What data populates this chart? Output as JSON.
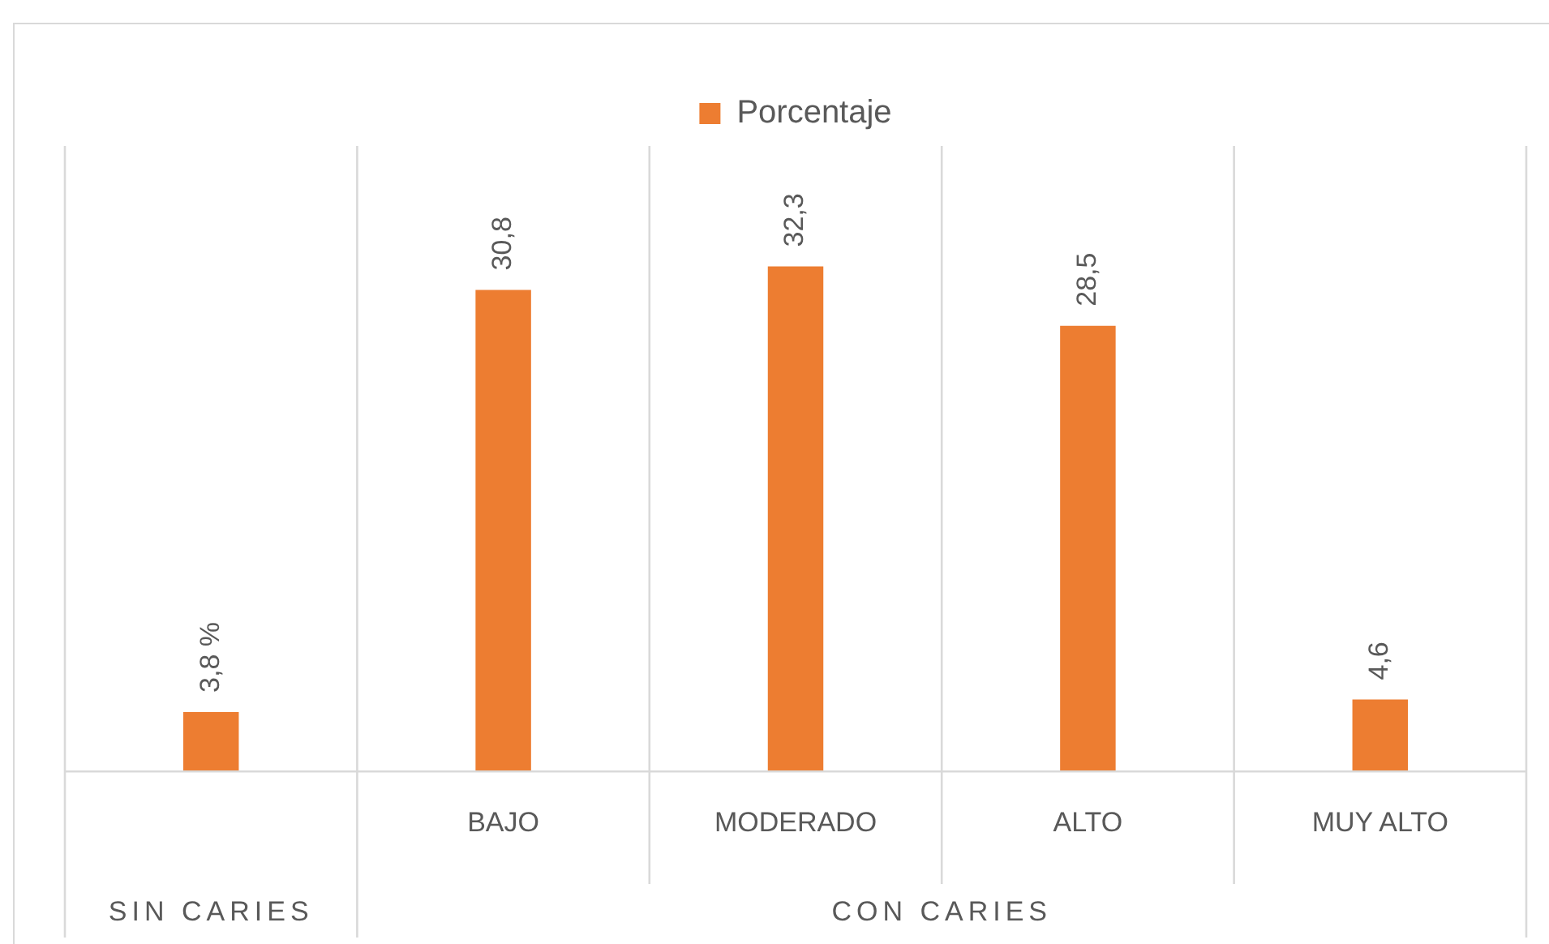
{
  "chart_data": {
    "type": "bar",
    "categories": [
      null,
      "BAJO",
      "MODERADO",
      "ALTO",
      "MUY ALTO"
    ],
    "series": [
      {
        "name": "Porcentaje",
        "color": "#ed7d31",
        "values": [
          3.8,
          30.8,
          32.3,
          28.5,
          4.6
        ],
        "value_labels": [
          "3,8 %",
          "30,8",
          "32,3",
          "28,5",
          "4,6"
        ]
      }
    ],
    "annotations": [
      "SIN CARIES",
      "CON CARIES"
    ],
    "grid": "x",
    "legend": "top",
    "tick_labels": "x"
  }
}
